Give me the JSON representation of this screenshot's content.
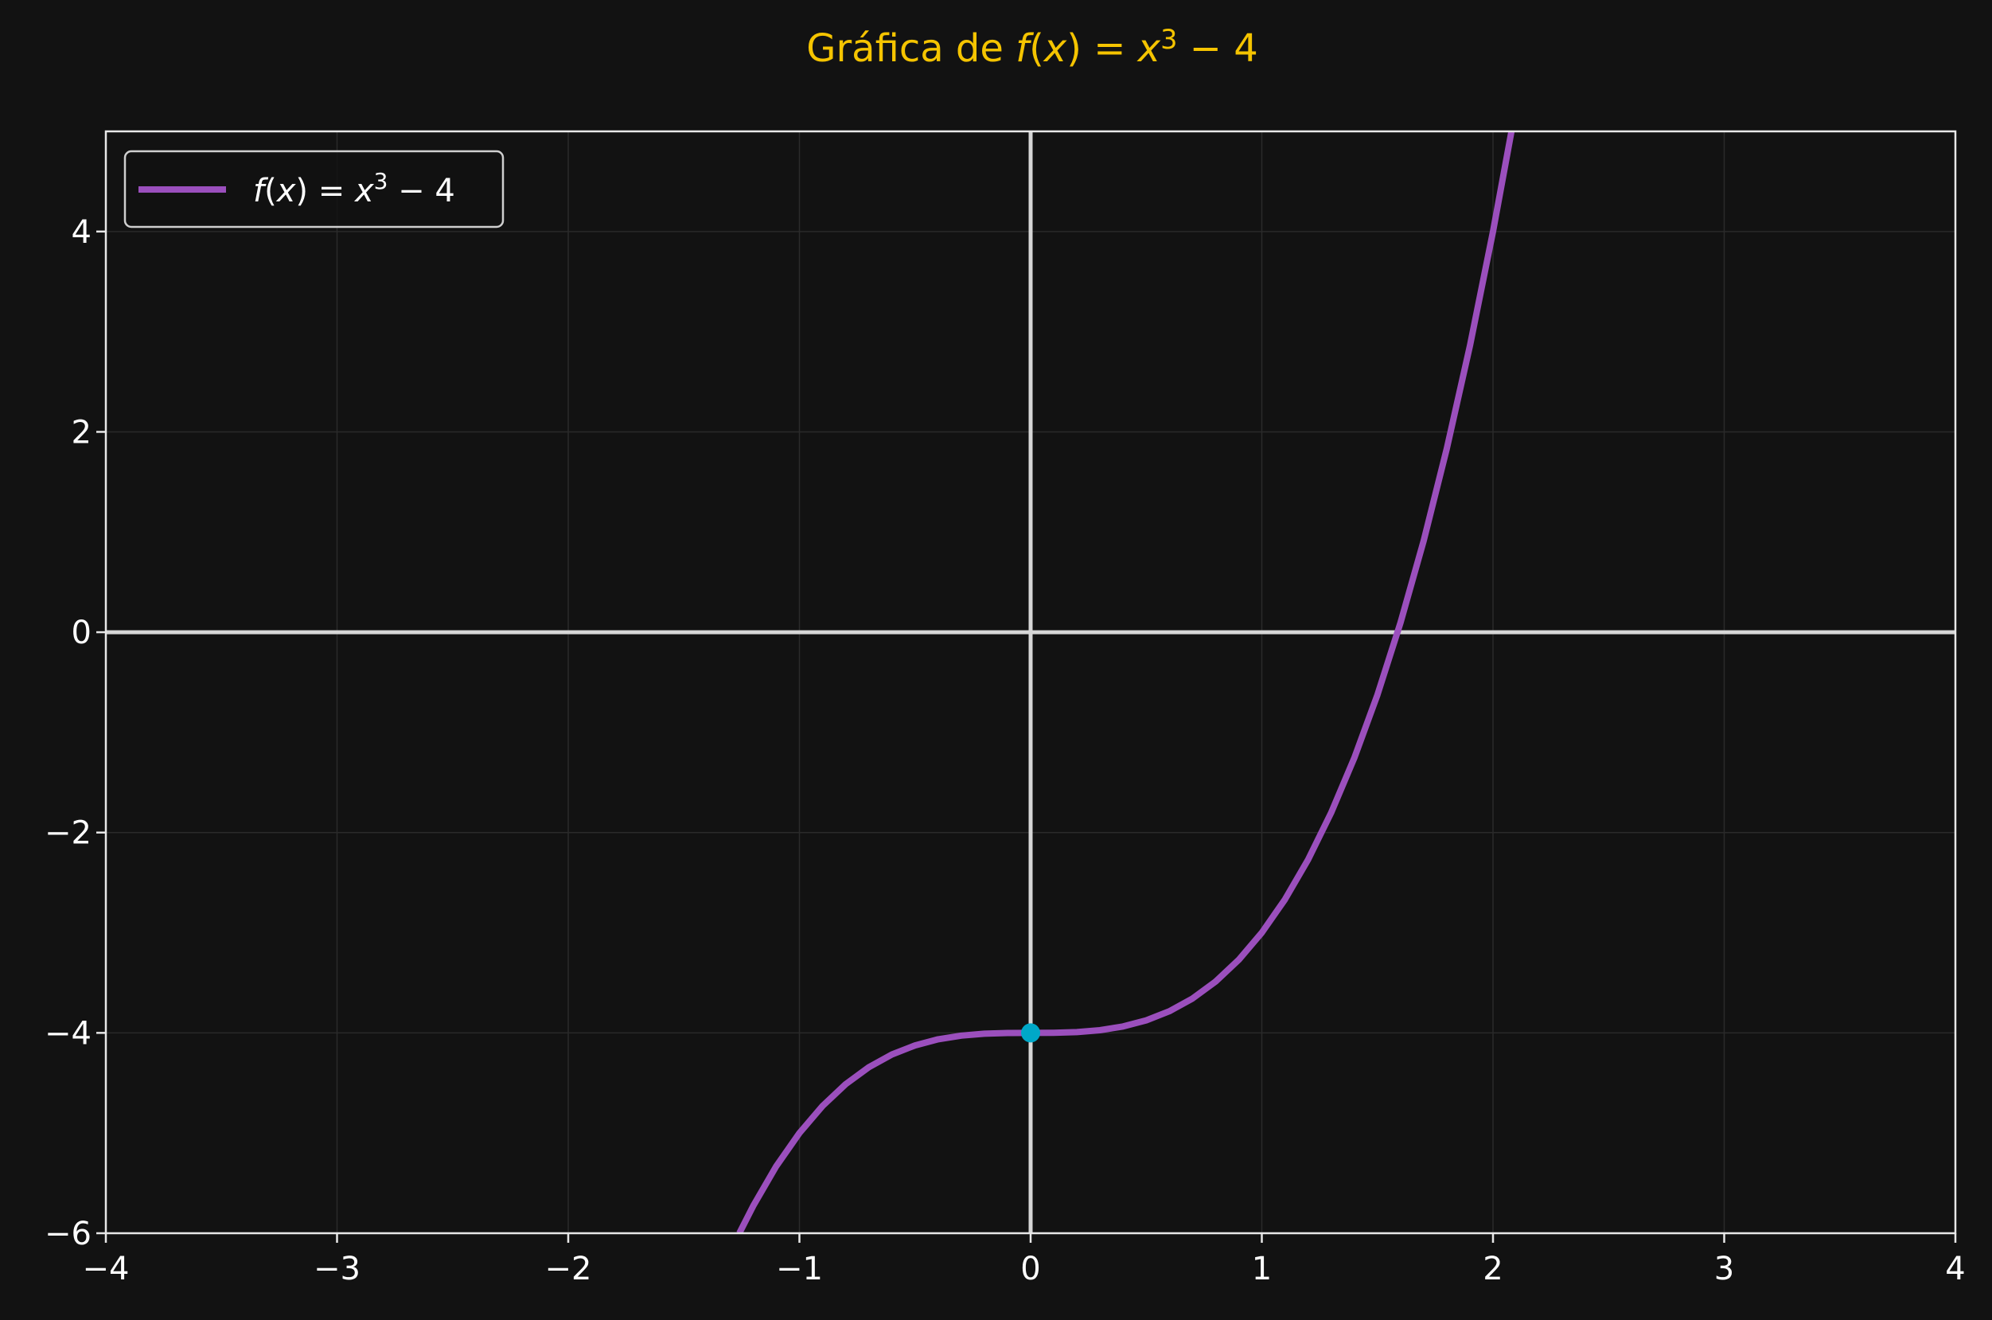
{
  "chart_data": {
    "type": "line",
    "title": "Gráfica de f(x) = x³ − 4",
    "title_parts": [
      {
        "text": "Gráfica de ",
        "italic": false
      },
      {
        "text": "f",
        "italic": true
      },
      {
        "text": "(",
        "italic": false
      },
      {
        "text": "x",
        "italic": true
      },
      {
        "text": ") = ",
        "italic": false
      },
      {
        "text": "x",
        "italic": true
      },
      {
        "text": "3",
        "italic": false,
        "superscript": true
      },
      {
        "text": " − 4",
        "italic": false
      }
    ],
    "xlabel": "",
    "ylabel": "",
    "xlim": [
      -4,
      4
    ],
    "ylim": [
      -6,
      5
    ],
    "xticks": [
      -4,
      -3,
      -2,
      -1,
      0,
      1,
      2,
      3,
      4
    ],
    "yticks": [
      -6,
      -4,
      -2,
      0,
      2,
      4
    ],
    "xtick_labels": [
      "−4",
      "−3",
      "−2",
      "−1",
      "0",
      "1",
      "2",
      "3",
      "4"
    ],
    "ytick_labels": [
      "−6",
      "−4",
      "−2",
      "0",
      "2",
      "4"
    ],
    "grid": true,
    "legend_position": "top-left",
    "series": [
      {
        "name": "f(x) = x³ − 4",
        "function": "x^3 - 4",
        "x": [
          -1.26,
          -1.2,
          -1.1,
          -1.0,
          -0.9,
          -0.8,
          -0.7,
          -0.6,
          -0.5,
          -0.4,
          -0.3,
          -0.2,
          -0.1,
          0.0,
          0.1,
          0.2,
          0.3,
          0.4,
          0.5,
          0.6,
          0.7,
          0.8,
          0.9,
          1.0,
          1.1,
          1.2,
          1.3,
          1.4,
          1.5,
          1.6,
          1.7,
          1.8,
          1.9,
          2.0,
          2.08
        ],
        "y": [
          -6.0,
          -5.728,
          -5.331,
          -5.0,
          -4.729,
          -4.512,
          -4.343,
          -4.216,
          -4.125,
          -4.064,
          -4.027,
          -4.008,
          -4.001,
          -4.0,
          -3.999,
          -3.992,
          -3.973,
          -3.936,
          -3.875,
          -3.784,
          -3.657,
          -3.488,
          -3.271,
          -3.0,
          -2.669,
          -2.272,
          -1.803,
          -1.256,
          -0.625,
          0.096,
          0.913,
          1.832,
          2.859,
          4.0,
          5.0
        ],
        "color": "#9b4fbd"
      }
    ],
    "highlight_point": {
      "x": 0,
      "y": -4,
      "color": "#00a8c8"
    },
    "legend_parts": [
      {
        "text": "f",
        "italic": true
      },
      {
        "text": "(",
        "italic": false
      },
      {
        "text": "x",
        "italic": true
      },
      {
        "text": ") = ",
        "italic": false
      },
      {
        "text": "x",
        "italic": true
      },
      {
        "text": "3",
        "italic": false,
        "superscript": true
      },
      {
        "text": " − 4",
        "italic": false
      }
    ]
  },
  "colors": {
    "background": "#121212",
    "title": "#f5c400",
    "axes": "#e8e8e8",
    "zero_lines": "#d6d6d6",
    "grid": "#2a2a2a",
    "text": "#ffffff"
  }
}
